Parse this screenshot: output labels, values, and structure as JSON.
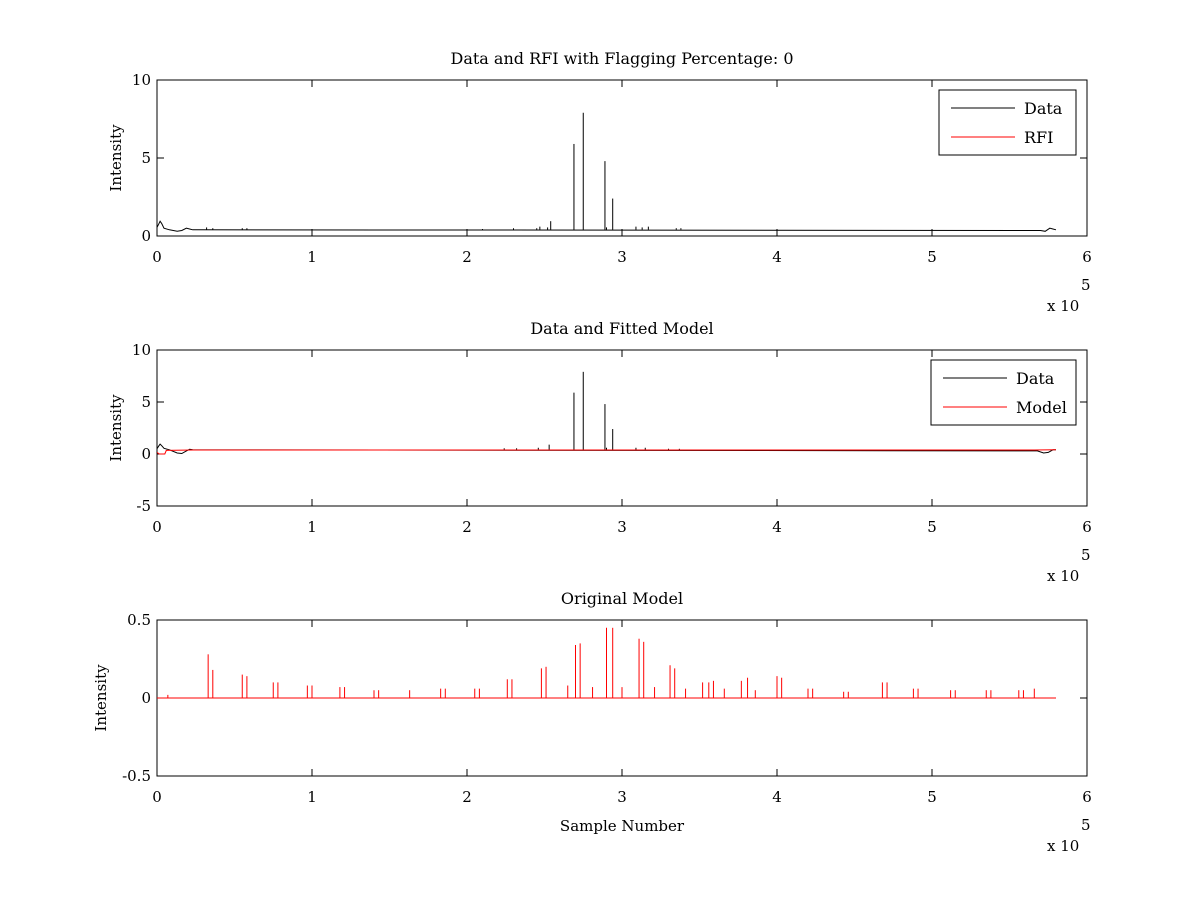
{
  "figure": {
    "background": "#ffffff"
  },
  "colors": {
    "data": "#000000",
    "rfi": "#ff0000",
    "model": "#ff0000"
  },
  "chart_data": [
    {
      "type": "line",
      "title": "Data and RFI with Flagging Percentage: 0",
      "xlabel": "",
      "ylabel": "Intensity",
      "xlim": [
        0,
        600000
      ],
      "ylim": [
        0,
        10
      ],
      "xticks": [
        0,
        1,
        2,
        3,
        4,
        5,
        6
      ],
      "yticks": [
        0,
        5,
        10
      ],
      "x_multiplier": "x 10",
      "x_multiplier_exponent": "5",
      "legend": {
        "position": "top-right"
      },
      "baseline": 0.4,
      "series": [
        {
          "name": "Data",
          "color": "#000000",
          "edge_start": [
            [
              0,
              0.55
            ],
            [
              1000,
              0.75
            ],
            [
              2000,
              0.95
            ],
            [
              3000,
              0.8
            ],
            [
              4500,
              0.5
            ],
            [
              8000,
              0.4
            ],
            [
              13000,
              0.3
            ],
            [
              16000,
              0.35
            ],
            [
              19000,
              0.5
            ],
            [
              21000,
              0.45
            ],
            [
              23000,
              0.4
            ]
          ],
          "edge_end": [
            [
              570000,
              0.35
            ],
            [
              573000,
              0.3
            ],
            [
              576000,
              0.5
            ],
            [
              578000,
              0.45
            ],
            [
              580000,
              0.4
            ]
          ],
          "spikes": [
            [
              32000,
              0.55
            ],
            [
              36000,
              0.5
            ],
            [
              55000,
              0.5
            ],
            [
              58000,
              0.5
            ],
            [
              210000,
              0.45
            ],
            [
              230000,
              0.5
            ],
            [
              245000,
              0.5
            ],
            [
              247000,
              0.6
            ],
            [
              252000,
              0.55
            ],
            [
              254000,
              0.95
            ],
            [
              269000,
              5.9
            ],
            [
              275000,
              7.9
            ],
            [
              289000,
              4.8
            ],
            [
              290000,
              0.55
            ],
            [
              294000,
              2.4
            ],
            [
              309000,
              0.6
            ],
            [
              313000,
              0.55
            ],
            [
              317000,
              0.6
            ],
            [
              335000,
              0.5
            ],
            [
              338000,
              0.5
            ]
          ]
        },
        {
          "name": "RFI",
          "color": "#ff0000",
          "edge_start": [],
          "edge_end": [],
          "spikes": []
        }
      ]
    },
    {
      "type": "line",
      "title": "Data and Fitted Model",
      "xlabel": "",
      "ylabel": "Intensity",
      "xlim": [
        0,
        600000
      ],
      "ylim": [
        -5,
        10
      ],
      "xticks": [
        0,
        1,
        2,
        3,
        4,
        5,
        6
      ],
      "yticks": [
        -5,
        0,
        5,
        10
      ],
      "x_multiplier": "x 10",
      "x_multiplier_exponent": "5",
      "legend": {
        "position": "top-right"
      },
      "baseline": 0.4,
      "series": [
        {
          "name": "Data",
          "color": "#000000",
          "edge_start": [
            [
              0,
              0.5
            ],
            [
              1000,
              0.75
            ],
            [
              2000,
              0.95
            ],
            [
              3000,
              0.8
            ],
            [
              4500,
              0.55
            ],
            [
              8000,
              0.4
            ],
            [
              13000,
              0.1
            ],
            [
              16000,
              0.05
            ],
            [
              19000,
              0.3
            ],
            [
              21000,
              0.45
            ],
            [
              23000,
              0.4
            ]
          ],
          "edge_end": [
            [
              568000,
              0.3
            ],
            [
              572000,
              0.1
            ],
            [
              575000,
              0.15
            ],
            [
              578000,
              0.4
            ],
            [
              580000,
              0.4
            ]
          ],
          "spikes": [
            [
              224000,
              0.55
            ],
            [
              232000,
              0.55
            ],
            [
              246000,
              0.6
            ],
            [
              253000,
              0.9
            ],
            [
              269000,
              5.9
            ],
            [
              275000,
              7.9
            ],
            [
              289000,
              4.8
            ],
            [
              290000,
              0.6
            ],
            [
              294000,
              2.4
            ],
            [
              309000,
              0.6
            ],
            [
              315000,
              0.6
            ],
            [
              330000,
              0.5
            ],
            [
              337000,
              0.5
            ]
          ]
        },
        {
          "name": "Model",
          "color": "#ff0000",
          "edge_start": [
            [
              0,
              0.15
            ],
            [
              1500,
              0.0
            ],
            [
              5000,
              0.0
            ],
            [
              6000,
              0.35
            ],
            [
              23000,
              0.38
            ]
          ],
          "edge_end": [
            [
              566000,
              0.38
            ],
            [
              580000,
              0.4
            ]
          ],
          "spikes": []
        }
      ]
    },
    {
      "type": "line",
      "title": "Original Model",
      "xlabel": "Sample Number",
      "ylabel": "Intensity",
      "xlim": [
        0,
        600000
      ],
      "ylim": [
        -0.5,
        0.5
      ],
      "xticks": [
        0,
        1,
        2,
        3,
        4,
        5,
        6
      ],
      "yticks": [
        -0.5,
        0,
        0.5
      ],
      "x_multiplier": "x 10",
      "x_multiplier_exponent": "5",
      "legend": null,
      "baseline": 0.0,
      "series": [
        {
          "name": "",
          "color": "#ff0000",
          "edge_start": [],
          "edge_end": [],
          "spikes": [
            [
              7000,
              0.02
            ],
            [
              33000,
              0.28
            ],
            [
              36000,
              0.18
            ],
            [
              55000,
              0.15
            ],
            [
              58000,
              0.14
            ],
            [
              75000,
              0.1
            ],
            [
              78000,
              0.1
            ],
            [
              97000,
              0.08
            ],
            [
              100000,
              0.08
            ],
            [
              118000,
              0.07
            ],
            [
              121000,
              0.07
            ],
            [
              140000,
              0.05
            ],
            [
              143000,
              0.05
            ],
            [
              163000,
              0.05
            ],
            [
              183000,
              0.06
            ],
            [
              186000,
              0.06
            ],
            [
              205000,
              0.06
            ],
            [
              208000,
              0.06
            ],
            [
              226000,
              0.12
            ],
            [
              229000,
              0.12
            ],
            [
              248000,
              0.19
            ],
            [
              251000,
              0.2
            ],
            [
              265000,
              0.08
            ],
            [
              270000,
              0.34
            ],
            [
              273000,
              0.35
            ],
            [
              281000,
              0.07
            ],
            [
              290000,
              0.45
            ],
            [
              294000,
              0.45
            ],
            [
              300000,
              0.07
            ],
            [
              311000,
              0.38
            ],
            [
              314000,
              0.36
            ],
            [
              321000,
              0.07
            ],
            [
              331000,
              0.21
            ],
            [
              334000,
              0.19
            ],
            [
              341000,
              0.06
            ],
            [
              352000,
              0.1
            ],
            [
              356000,
              0.1
            ],
            [
              359000,
              0.11
            ],
            [
              366000,
              0.06
            ],
            [
              377000,
              0.11
            ],
            [
              381000,
              0.13
            ],
            [
              386000,
              0.05
            ],
            [
              400000,
              0.14
            ],
            [
              403000,
              0.13
            ],
            [
              420000,
              0.06
            ],
            [
              423000,
              0.06
            ],
            [
              443000,
              0.04
            ],
            [
              446000,
              0.04
            ],
            [
              468000,
              0.1
            ],
            [
              471000,
              0.1
            ],
            [
              488000,
              0.06
            ],
            [
              491000,
              0.06
            ],
            [
              512000,
              0.05
            ],
            [
              515000,
              0.05
            ],
            [
              535000,
              0.05
            ],
            [
              538000,
              0.05
            ],
            [
              556000,
              0.05
            ],
            [
              559000,
              0.05
            ],
            [
              566000,
              0.06
            ]
          ]
        }
      ]
    }
  ]
}
